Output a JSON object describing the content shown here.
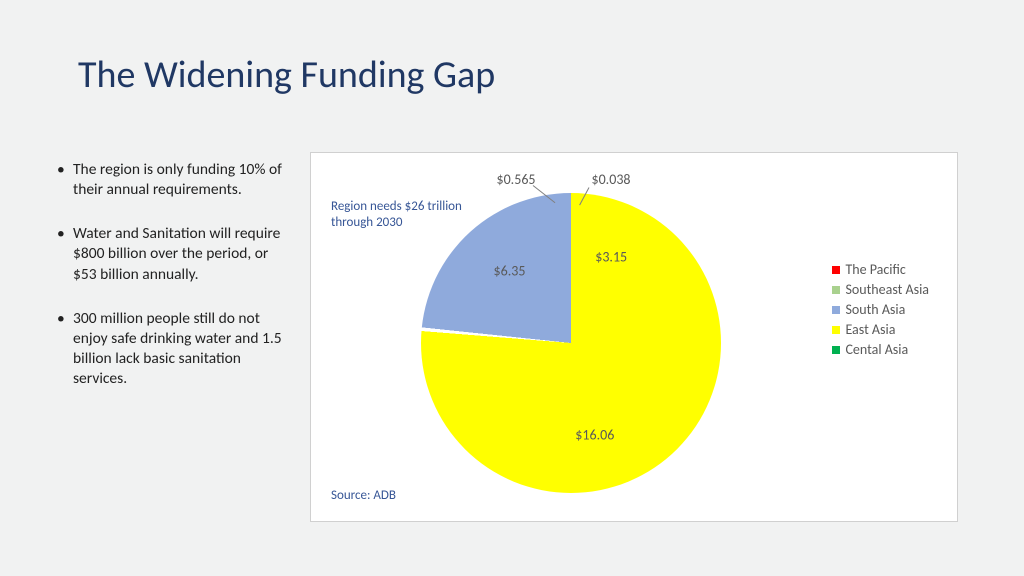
{
  "title": "The Widening Funding Gap",
  "bullets": [
    "The region is only funding 10% of their annual requirements.",
    "Water and Sanitation will require $800 billion over the period, or $53 billion annually.",
    "300 million people still do not enjoy safe drinking water and 1.5 billion lack basic sanitation services."
  ],
  "chart": {
    "type": "pie",
    "note_top_line1": "Region needs $26 trillion",
    "note_top_line2": "through 2030",
    "source": "Source: ADB",
    "background_color": "#ffffff",
    "border_color": "#d0d0d0",
    "gap_color": "#ffffff",
    "label_color": "#595959",
    "label_fontsize": 14,
    "note_color": "#375696",
    "slices": [
      {
        "name": "East Asia",
        "value": 16.06,
        "label": "$16.06",
        "color": "#ffff00"
      },
      {
        "name": "South Asia",
        "value": 6.35,
        "label": "$6.35",
        "color": "#8faadc"
      },
      {
        "name": "Southeast Asia",
        "value": 3.15,
        "label": "$3.15",
        "color": "#a9d18e"
      },
      {
        "name": "The Pacific",
        "value": 0.038,
        "label": "$0.038",
        "color": "#ff0000"
      },
      {
        "name": "Cental Asia",
        "value": 0.565,
        "label": "$0.565",
        "color": "#00b050"
      }
    ],
    "legend_order": [
      "The Pacific",
      "Southeast Asia",
      "South Asia",
      "East Asia",
      "Cental Asia"
    ],
    "start_angle_deg": 55,
    "gap_deg": 1.4
  }
}
